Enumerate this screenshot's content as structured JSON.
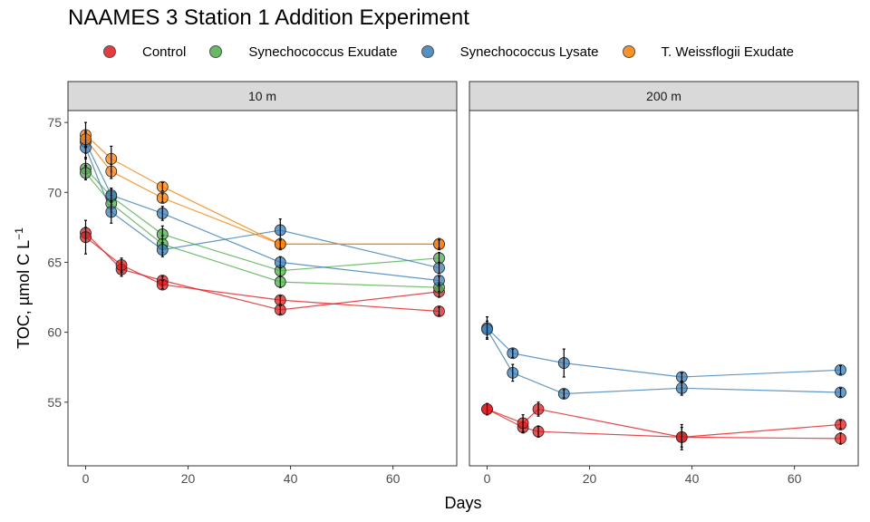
{
  "chart_data": {
    "type": "line",
    "title": "NAAMES 3 Station 1 Addition Experiment",
    "xlabel": "Days",
    "ylabel_main": "TOC, µmol C L",
    "ylabel_sup": "−1",
    "xlim": [
      -3.45,
      72.45
    ],
    "ylim": [
      50.45,
      75.85
    ],
    "x_ticks": [
      0,
      20,
      40,
      60
    ],
    "y_ticks": [
      55,
      60,
      65,
      70,
      75
    ],
    "grid": false,
    "legend_position": "top",
    "legend": [
      {
        "name": "Control",
        "color": "#E41A1C"
      },
      {
        "name": "Synechococcus Exudate",
        "color": "#4DAF4A"
      },
      {
        "name": "Synechococcus Lysate",
        "color": "#377EB8"
      },
      {
        "name": "T. Weissflogii Exudate",
        "color": "#FF7F00"
      }
    ],
    "panels": [
      {
        "label": "10 m",
        "series": [
          {
            "name": "Control",
            "color": "#E41A1C",
            "x": [
              0,
              7,
              15,
              38,
              69
            ],
            "y": [
              67.1,
              64.5,
              63.7,
              61.6,
              62.9
            ],
            "err": [
              0.4,
              0.5,
              0.3,
              0.3,
              0.4
            ]
          },
          {
            "name": "Control",
            "color": "#E41A1C",
            "x": [
              0,
              7,
              15,
              38,
              69
            ],
            "y": [
              66.8,
              64.8,
              63.4,
              62.3,
              61.5
            ],
            "err": [
              1.2,
              0.5,
              0.3,
              0.3,
              0.3
            ]
          },
          {
            "name": "Synechococcus Exudate",
            "color": "#4DAF4A",
            "x": [
              0,
              5,
              15,
              38,
              69
            ],
            "y": [
              71.7,
              69.7,
              67.0,
              64.4,
              65.3
            ],
            "err": [
              0.8,
              0.6,
              0.6,
              0.4,
              0.4
            ]
          },
          {
            "name": "Synechococcus Exudate",
            "color": "#4DAF4A",
            "x": [
              0,
              5,
              15,
              38,
              69
            ],
            "y": [
              71.4,
              69.2,
              66.3,
              63.6,
              63.2
            ],
            "err": [
              0.5,
              0.6,
              0.6,
              0.4,
              0.3
            ]
          },
          {
            "name": "Synechococcus Lysate",
            "color": "#377EB8",
            "x": [
              0,
              5,
              15,
              38,
              69
            ],
            "y": [
              73.6,
              69.8,
              68.5,
              65.0,
              63.7
            ],
            "err": [
              0.8,
              0.5,
              0.5,
              0.4,
              0.3
            ]
          },
          {
            "name": "Synechococcus Lysate",
            "color": "#377EB8",
            "x": [
              0,
              5,
              15,
              38,
              69
            ],
            "y": [
              73.2,
              68.6,
              65.9,
              67.3,
              64.6
            ],
            "err": [
              0.8,
              0.8,
              0.5,
              0.8,
              0.4
            ]
          },
          {
            "name": "T. Weissflogii Exudate",
            "color": "#FF7F00",
            "x": [
              0,
              5,
              15,
              38,
              69
            ],
            "y": [
              74.1,
              72.4,
              70.4,
              66.3,
              66.3
            ],
            "err": [
              0.9,
              0.9,
              0.3,
              0.4,
              0.4
            ]
          },
          {
            "name": "T. Weissflogii Exudate",
            "color": "#FF7F00",
            "x": [
              0,
              5,
              15,
              38,
              69
            ],
            "y": [
              73.8,
              71.5,
              69.6,
              66.3,
              66.3
            ],
            "err": [
              0.5,
              0.5,
              0.3,
              0.3,
              0.3
            ]
          }
        ]
      },
      {
        "label": "200 m",
        "series": [
          {
            "name": "Control",
            "color": "#E41A1C",
            "x": [
              0,
              7,
              10,
              38,
              69
            ],
            "y": [
              54.5,
              53.2,
              52.9,
              52.5,
              52.4
            ],
            "err": [
              0.4,
              0.4,
              0.4,
              0.7,
              0.4
            ]
          },
          {
            "name": "Control",
            "color": "#E41A1C",
            "x": [
              0,
              7,
              10,
              38,
              69
            ],
            "y": [
              54.5,
              53.5,
              54.5,
              52.5,
              53.4
            ],
            "err": [
              0.4,
              0.6,
              0.5,
              0.9,
              0.3
            ]
          },
          {
            "name": "Synechococcus Lysate",
            "color": "#377EB8",
            "x": [
              0,
              5,
              15,
              38,
              69
            ],
            "y": [
              60.3,
              58.5,
              57.8,
              56.8,
              57.3
            ],
            "err": [
              0.8,
              0.3,
              1.0,
              0.3,
              0.3
            ]
          },
          {
            "name": "Synechococcus Lysate",
            "color": "#377EB8",
            "x": [
              0,
              5,
              15,
              38,
              69
            ],
            "y": [
              60.2,
              57.1,
              55.6,
              56.0,
              55.7
            ],
            "err": [
              0.6,
              0.6,
              0.3,
              0.5,
              0.3
            ]
          }
        ]
      }
    ]
  }
}
